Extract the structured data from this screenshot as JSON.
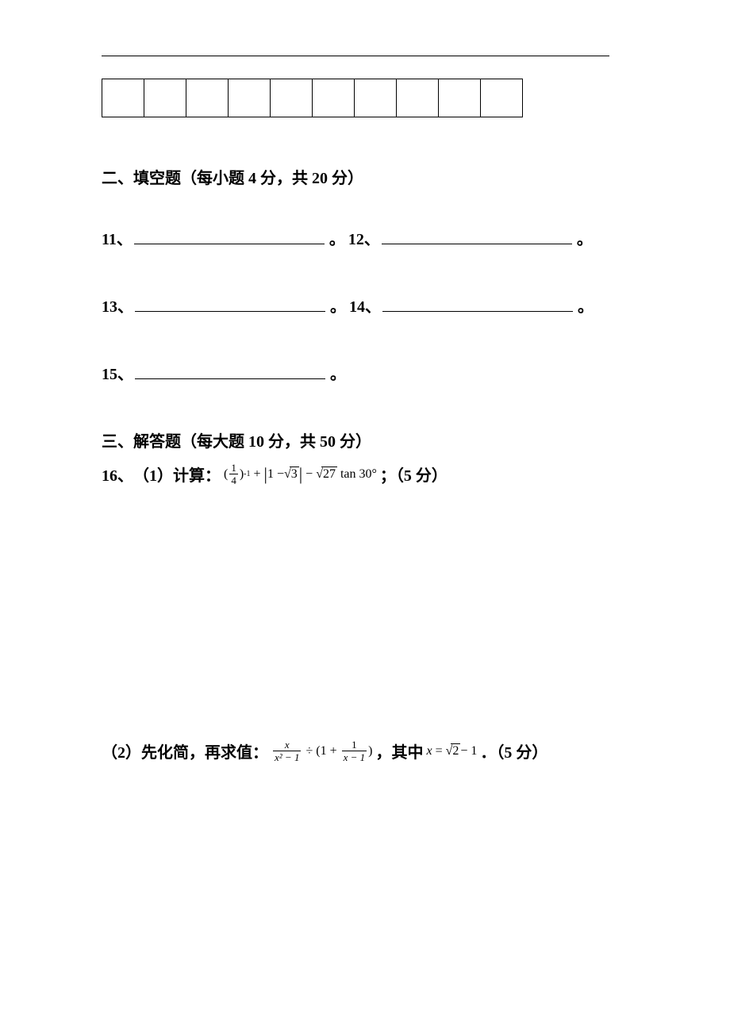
{
  "section2": {
    "title": "二、填空题（每小题 4 分，共 20 分）",
    "items": [
      {
        "num": "11、"
      },
      {
        "num": "12、"
      },
      {
        "num": "13、"
      },
      {
        "num": "14、"
      },
      {
        "num": "15、"
      }
    ],
    "period": "。"
  },
  "section3": {
    "title": "三、解答题（每大题 10 分，共 50 分）",
    "q16_label": "16、",
    "part1_label": "（1）计算：",
    "part1_points": "；（5 分）",
    "part2_label": "（2）先化简，再求值：",
    "part2_mid": "，其中",
    "part2_end": "．（5 分）"
  },
  "formulas": {
    "f1": {
      "frac_num": "1",
      "frac_den": "4",
      "exp": "-1",
      "sqrt3": "3",
      "sqrt27": "27",
      "tan": "tan",
      "angle": "30°"
    },
    "f2": {
      "x": "x",
      "x2m1": "x² − 1",
      "one": "1",
      "xm1": "x − 1",
      "sqrt2": "2",
      "minus1": " − 1"
    }
  },
  "table": {
    "cols": 10
  }
}
